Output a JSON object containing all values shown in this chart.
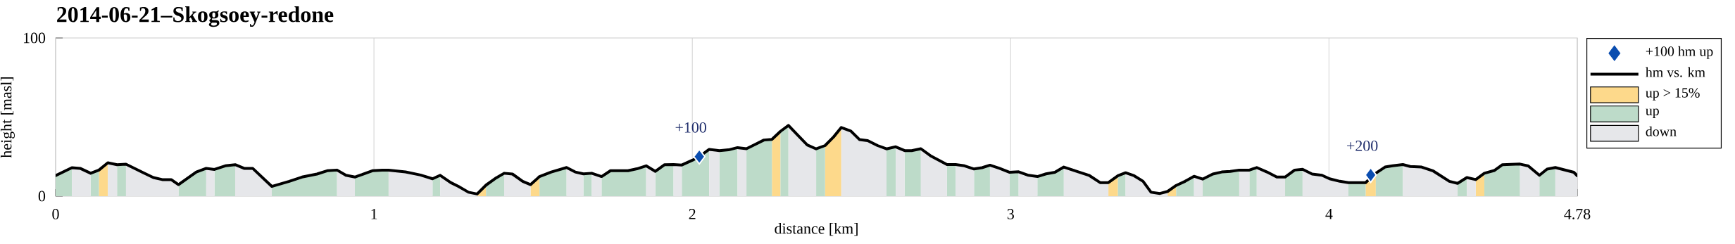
{
  "chart_data": {
    "type": "line",
    "title": "2014-06-21–Skogsoey-redone",
    "xlabel": "distance [km]",
    "ylabel": "height [masl]",
    "xlim": [
      0,
      4.78
    ],
    "ylim": [
      0,
      100
    ],
    "xticks": [
      0,
      1,
      2,
      3,
      4,
      4.78
    ],
    "yticks": [
      0,
      100
    ],
    "grid": "x",
    "legend": "top right",
    "x": [
      0,
      0.051,
      0.077,
      0.11,
      0.136,
      0.164,
      0.193,
      0.221,
      0.276,
      0.307,
      0.335,
      0.363,
      0.386,
      0.442,
      0.473,
      0.499,
      0.533,
      0.564,
      0.592,
      0.619,
      0.679,
      0.734,
      0.774,
      0.821,
      0.853,
      0.884,
      0.912,
      0.94,
      0.963,
      0.995,
      1.026,
      1.046,
      1.099,
      1.146,
      1.184,
      1.208,
      1.241,
      1.265,
      1.297,
      1.324,
      1.352,
      1.384,
      1.409,
      1.435,
      1.467,
      1.492,
      1.52,
      1.557,
      1.605,
      1.632,
      1.658,
      1.684,
      1.715,
      1.743,
      1.798,
      1.826,
      1.855,
      1.884,
      1.913,
      1.941,
      1.967,
      2.0,
      2.022,
      2.053,
      2.085,
      2.114,
      2.142,
      2.17,
      2.198,
      2.225,
      2.25,
      2.277,
      2.302,
      2.33,
      2.361,
      2.389,
      2.417,
      2.444,
      2.468,
      2.498,
      2.525,
      2.551,
      2.582,
      2.61,
      2.639,
      2.667,
      2.689,
      2.718,
      2.748,
      2.8,
      2.827,
      2.855,
      2.885,
      2.91,
      2.935,
      2.965,
      2.997,
      3.025,
      3.056,
      3.084,
      3.111,
      3.139,
      3.167,
      3.202,
      3.246,
      3.281,
      3.307,
      3.337,
      3.361,
      3.388,
      3.416,
      3.441,
      3.469,
      3.493,
      3.52,
      3.548,
      3.576,
      3.603,
      3.635,
      3.663,
      3.69,
      3.718,
      3.75,
      3.773,
      3.805,
      3.836,
      3.862,
      3.892,
      3.917,
      3.947,
      3.978,
      4.002,
      4.034,
      4.061,
      4.115,
      4.147,
      4.176,
      4.2,
      4.232,
      4.255,
      4.291,
      4.326,
      4.378,
      4.404,
      4.433,
      4.461,
      4.488,
      4.519,
      4.545,
      4.6,
      4.626,
      4.661,
      4.685,
      4.711,
      4.74,
      4.769,
      4.78
    ],
    "series": [
      {
        "name": "+100 hm up",
        "type": "scatter",
        "marker": "diamond",
        "color": "#0a4db0",
        "x": [
          2.022,
          4.131
        ],
        "values": [
          25.0,
          13.4
        ]
      },
      {
        "name": "hm vs. km",
        "line_style": "solid",
        "color": "#000000",
        "values": [
          13,
          18,
          17.6,
          14.5,
          16.5,
          21.1,
          19.9,
          20.2,
          14.8,
          11.8,
          10.5,
          10.5,
          7.3,
          15.3,
          17.6,
          16.9,
          19.2,
          19.9,
          17.6,
          17.6,
          6.2,
          9.4,
          12.1,
          14.0,
          16.1,
          16.5,
          13.2,
          12.1,
          13.7,
          16.1,
          16.4,
          16.4,
          15.3,
          13.4,
          11.0,
          13.2,
          8.6,
          6.2,
          2.5,
          1.4,
          7.0,
          11.6,
          14.5,
          14.0,
          9.4,
          7.3,
          12.4,
          15.3,
          18.1,
          15.3,
          14.1,
          14.5,
          12.4,
          16.1,
          16.1,
          17.3,
          19.2,
          15.7,
          19.9,
          20.0,
          19.7,
          22.7,
          25.0,
          29.6,
          28.8,
          29.3,
          30.7,
          30.0,
          32.8,
          35.5,
          35.9,
          41.0,
          44.7,
          38.8,
          32.4,
          29.9,
          32.0,
          37.5,
          43.4,
          41.2,
          35.8,
          35.1,
          32.0,
          29.9,
          31.2,
          28.8,
          28.8,
          30.0,
          25.6,
          20.0,
          20.0,
          19.2,
          17.2,
          18.0,
          19.6,
          17.6,
          15.1,
          15.4,
          13.2,
          12.4,
          14.1,
          15.1,
          18.4,
          16.1,
          13.2,
          8.6,
          8.6,
          12.9,
          14.8,
          12.9,
          9.4,
          2.5,
          1.7,
          3.0,
          6.8,
          9.4,
          12.6,
          10.8,
          14.0,
          15.3,
          15.7,
          16.5,
          16.5,
          18.1,
          15.3,
          12.1,
          12.1,
          16.5,
          17.0,
          14.0,
          13.2,
          11.0,
          9.4,
          8.6,
          8.6,
          14.5,
          18.4,
          19.2,
          20.0,
          18.8,
          18.4,
          16.1,
          9.4,
          8.1,
          11.8,
          10.5,
          14.5,
          16.2,
          19.9,
          20.3,
          19.1,
          13.2,
          17.1,
          18.1,
          16.6,
          15.1,
          12.9
        ]
      },
      {
        "name": "up > 15%",
        "type": "area",
        "color": "#fdd98b",
        "x": [
          0.136,
          0.164,
          null,
          1.324,
          1.352,
          null,
          1.492,
          1.52,
          null,
          2.25,
          2.277,
          null,
          2.417,
          2.444,
          2.468,
          null,
          3.307,
          3.337,
          null,
          3.493,
          3.52,
          null,
          4.115,
          4.147,
          null,
          4.461,
          4.488
        ],
        "values": [
          16.5,
          21.1,
          null,
          1.4,
          7.0,
          null,
          7.3,
          12.4,
          null,
          35.9,
          41.0,
          null,
          32.0,
          37.5,
          43.4,
          null,
          8.6,
          12.9,
          null,
          3.0,
          6.8,
          null,
          8.6,
          14.5,
          null,
          10.5,
          14.5
        ]
      },
      {
        "name": "up",
        "type": "area",
        "color": "#bddbc9",
        "x": [
          0,
          0.051,
          null,
          0.11,
          0.136,
          null,
          0.193,
          0.221,
          null,
          0.386,
          0.442,
          0.473,
          null,
          0.499,
          0.533,
          0.564,
          null,
          0.679,
          0.734,
          0.774,
          0.821,
          0.853,
          0.884,
          null,
          0.94,
          0.963,
          0.995,
          1.026,
          1.046,
          null,
          1.184,
          1.208,
          null,
          1.352,
          1.384,
          1.409,
          null,
          1.52,
          1.557,
          1.605,
          null,
          1.658,
          1.684,
          null,
          1.715,
          1.743,
          1.798,
          1.826,
          1.855,
          null,
          1.884,
          1.913,
          1.941,
          null,
          1.967,
          2.0,
          2.053,
          null,
          2.085,
          2.114,
          2.142,
          null,
          2.17,
          2.198,
          2.225,
          2.25,
          null,
          2.277,
          2.302,
          null,
          2.389,
          2.417,
          null,
          2.61,
          2.639,
          null,
          2.667,
          2.689,
          2.718,
          null,
          2.8,
          2.827,
          null,
          2.885,
          2.91,
          2.935,
          null,
          2.997,
          3.025,
          null,
          3.084,
          3.111,
          3.139,
          3.167,
          null,
          3.337,
          3.361,
          null,
          3.52,
          3.548,
          3.576,
          null,
          3.603,
          3.635,
          3.663,
          3.69,
          3.718,
          null,
          3.75,
          3.773,
          null,
          3.862,
          3.892,
          3.917,
          null,
          4.061,
          4.115,
          null,
          4.147,
          4.176,
          4.2,
          4.232,
          null,
          4.404,
          4.433,
          null,
          4.488,
          4.519,
          4.545,
          4.6,
          null,
          4.661,
          4.685,
          4.711
        ],
        "values": [
          13,
          18,
          null,
          14.5,
          16.5,
          null,
          19.9,
          20.2,
          null,
          7.3,
          15.3,
          17.6,
          null,
          16.9,
          19.2,
          19.9,
          null,
          6.2,
          9.4,
          12.1,
          14.0,
          16.1,
          16.5,
          null,
          12.1,
          13.7,
          16.1,
          16.4,
          16.4,
          null,
          11.0,
          13.2,
          null,
          7.0,
          11.6,
          14.5,
          null,
          12.4,
          15.3,
          18.1,
          null,
          14.1,
          14.5,
          null,
          12.4,
          16.1,
          16.1,
          17.3,
          19.2,
          null,
          15.7,
          19.9,
          20.0,
          null,
          19.7,
          22.7,
          29.6,
          null,
          28.8,
          29.3,
          30.7,
          null,
          30.0,
          32.8,
          35.5,
          35.9,
          null,
          41.0,
          44.7,
          null,
          29.9,
          32.0,
          null,
          29.9,
          31.2,
          null,
          28.8,
          28.8,
          30.0,
          null,
          20.0,
          20.0,
          null,
          17.2,
          18.0,
          19.6,
          null,
          15.1,
          15.4,
          null,
          12.4,
          14.1,
          15.1,
          18.4,
          null,
          12.9,
          14.8,
          null,
          6.8,
          9.4,
          12.6,
          null,
          10.8,
          14.0,
          15.3,
          15.7,
          16.5,
          null,
          16.5,
          18.1,
          null,
          12.1,
          16.5,
          17.0,
          null,
          8.6,
          8.6,
          null,
          14.5,
          18.4,
          19.2,
          20.0,
          null,
          8.1,
          11.8,
          null,
          14.5,
          16.2,
          19.9,
          20.3,
          null,
          13.2,
          17.1,
          18.1
        ]
      },
      {
        "name": "down",
        "type": "area",
        "color": "#e6e7ea",
        "x": [
          0.051,
          0.077,
          0.11,
          null,
          0.164,
          0.193,
          null,
          0.221,
          0.276,
          0.307,
          0.335,
          0.363,
          0.386,
          null,
          0.473,
          0.499,
          null,
          0.564,
          0.592,
          0.619,
          0.679,
          null,
          0.884,
          0.912,
          0.94,
          null,
          1.046,
          1.099,
          1.146,
          1.184,
          null,
          1.208,
          1.241,
          1.265,
          1.297,
          1.324,
          null,
          1.409,
          1.435,
          1.467,
          1.492,
          null,
          1.605,
          1.632,
          1.658,
          null,
          1.684,
          1.715,
          null,
          1.855,
          1.884,
          null,
          1.941,
          1.967,
          null,
          2.053,
          2.085,
          null,
          2.142,
          2.17,
          null,
          2.302,
          2.33,
          2.361,
          2.389,
          null,
          2.468,
          2.498,
          2.525,
          2.551,
          2.582,
          2.61,
          null,
          2.639,
          2.667,
          null,
          2.718,
          2.748,
          2.8,
          null,
          2.827,
          2.855,
          2.885,
          null,
          2.935,
          2.965,
          2.997,
          null,
          3.025,
          3.056,
          3.084,
          null,
          3.167,
          3.202,
          3.246,
          3.281,
          3.307,
          null,
          3.361,
          3.388,
          3.416,
          3.441,
          3.469,
          3.493,
          null,
          3.576,
          3.603,
          null,
          3.718,
          3.75,
          null,
          3.773,
          3.805,
          3.836,
          3.862,
          null,
          3.917,
          3.947,
          3.978,
          4.002,
          4.034,
          4.061,
          null,
          4.232,
          4.255,
          4.291,
          4.326,
          4.378,
          4.404,
          null,
          4.433,
          4.461,
          null,
          4.6,
          4.626,
          4.661,
          null,
          4.711,
          4.74,
          4.769,
          4.78
        ],
        "values": [
          18,
          17.6,
          14.5,
          null,
          21.1,
          19.9,
          null,
          20.2,
          14.8,
          11.8,
          10.5,
          10.5,
          7.3,
          null,
          17.6,
          16.9,
          null,
          19.9,
          17.6,
          17.6,
          6.2,
          null,
          16.5,
          13.2,
          12.1,
          null,
          16.4,
          15.3,
          13.4,
          11.0,
          null,
          13.2,
          8.6,
          6.2,
          2.5,
          1.4,
          null,
          14.5,
          14.0,
          9.4,
          7.3,
          null,
          18.1,
          15.3,
          14.1,
          null,
          14.5,
          12.4,
          null,
          19.2,
          15.7,
          null,
          20.0,
          19.7,
          null,
          29.6,
          28.8,
          null,
          30.7,
          30.0,
          null,
          44.7,
          38.8,
          32.4,
          29.9,
          null,
          43.4,
          41.2,
          35.8,
          35.1,
          32.0,
          29.9,
          null,
          31.2,
          28.8,
          null,
          30.0,
          25.6,
          20.0,
          null,
          20.0,
          19.2,
          17.2,
          null,
          19.6,
          17.6,
          15.1,
          null,
          15.4,
          13.2,
          12.4,
          null,
          18.4,
          16.1,
          13.2,
          8.6,
          8.6,
          null,
          14.8,
          12.9,
          9.4,
          2.5,
          1.7,
          3.0,
          null,
          12.6,
          10.8,
          null,
          16.5,
          16.5,
          null,
          18.1,
          15.3,
          12.1,
          12.1,
          null,
          17.0,
          14.0,
          13.2,
          11.0,
          9.4,
          8.6,
          null,
          20.0,
          18.8,
          18.4,
          16.1,
          9.4,
          8.1,
          null,
          11.8,
          10.5,
          null,
          20.3,
          19.1,
          13.2,
          null,
          18.1,
          16.6,
          15.1,
          12.9
        ]
      }
    ],
    "annotations": [
      {
        "text": "+100",
        "x": 2.022,
        "y": 25.0
      },
      {
        "text": "+200",
        "x": 4.131,
        "y": 13.4
      }
    ]
  }
}
